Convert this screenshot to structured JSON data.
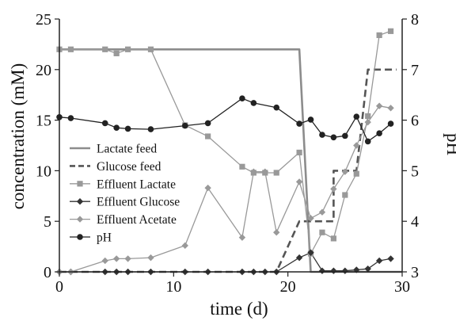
{
  "chart_data": {
    "type": "line",
    "title": "",
    "xlabel": "time (d)",
    "ylabel": "concentration (mM)",
    "y2label": "pH",
    "xlim": [
      0,
      30
    ],
    "ylim": [
      0,
      25
    ],
    "y2lim": [
      3,
      8
    ],
    "xticks": [
      "0",
      "10",
      "20",
      "30"
    ],
    "yticks": [
      "0",
      "5",
      "10",
      "15",
      "20",
      "25"
    ],
    "y2ticks": [
      "3",
      "4",
      "5",
      "6",
      "7",
      "8"
    ],
    "grid": false,
    "legend_position": "left",
    "series": [
      {
        "name": "Lactate feed",
        "axis": "left",
        "style": "solid",
        "marker": "none",
        "color": "#8c8c8c",
        "x": [
          0,
          21,
          22,
          30
        ],
        "y": [
          22,
          22,
          0,
          0
        ]
      },
      {
        "name": "Glucose feed",
        "axis": "left",
        "style": "dashed",
        "marker": "none",
        "color": "#555555",
        "x": [
          0,
          19,
          21,
          21,
          24,
          24,
          26,
          26,
          27,
          27,
          29.5
        ],
        "y": [
          0,
          0,
          5,
          5,
          5,
          10,
          10,
          10,
          20,
          20,
          20
        ]
      },
      {
        "name": "Effluent Lactate",
        "axis": "left",
        "style": "solid",
        "marker": "square",
        "color": "#999999",
        "x": [
          0,
          1,
          4,
          5,
          6,
          8,
          11,
          13,
          16,
          17,
          18,
          19,
          21,
          22,
          23,
          24,
          25,
          26,
          27,
          28,
          29
        ],
        "y": [
          22,
          22,
          22,
          21.6,
          22,
          22,
          14.5,
          13.4,
          10.4,
          9.8,
          9.8,
          9.8,
          11.8,
          1.8,
          3.9,
          3.3,
          7.6,
          9.7,
          15.4,
          23.4,
          23.8
        ]
      },
      {
        "name": "Effluent Glucose",
        "axis": "left",
        "style": "solid",
        "marker": "diamond",
        "color": "#333333",
        "x": [
          0,
          1,
          4,
          5,
          6,
          8,
          11,
          13,
          16,
          17,
          18,
          19,
          21,
          22,
          23,
          24,
          25,
          26,
          27,
          28,
          29
        ],
        "y": [
          0,
          0,
          0,
          0,
          0,
          0,
          0,
          0,
          0,
          0,
          0,
          0,
          1.4,
          1.9,
          0.1,
          0.1,
          0.1,
          0.2,
          0.3,
          1.1,
          1.3
        ]
      },
      {
        "name": "Effluent Acetate",
        "axis": "left",
        "style": "solid",
        "marker": "diamond",
        "color": "#999999",
        "x": [
          0,
          1,
          4,
          5,
          6,
          8,
          11,
          13,
          16,
          17,
          18,
          19,
          21,
          22,
          23,
          24,
          25,
          26,
          27,
          28,
          29
        ],
        "y": [
          0,
          0,
          1.1,
          1.3,
          1.3,
          1.4,
          2.6,
          8.3,
          3.4,
          9.9,
          9.9,
          3.9,
          8.9,
          5.3,
          5.9,
          8.2,
          9.9,
          12.5,
          14.8,
          16.4,
          16.2
        ]
      },
      {
        "name": "pH",
        "axis": "right",
        "style": "solid",
        "marker": "circle",
        "color": "#222222",
        "x": [
          0,
          1,
          4,
          5,
          6,
          8,
          11,
          13,
          16,
          17,
          19,
          21,
          22,
          23,
          24,
          25,
          26,
          27,
          28,
          29
        ],
        "y": [
          6.06,
          6.04,
          5.94,
          5.85,
          5.83,
          5.82,
          5.89,
          5.94,
          6.43,
          6.34,
          6.25,
          5.93,
          6.01,
          5.71,
          5.66,
          5.69,
          6.07,
          5.58,
          5.74,
          5.93
        ]
      }
    ]
  }
}
